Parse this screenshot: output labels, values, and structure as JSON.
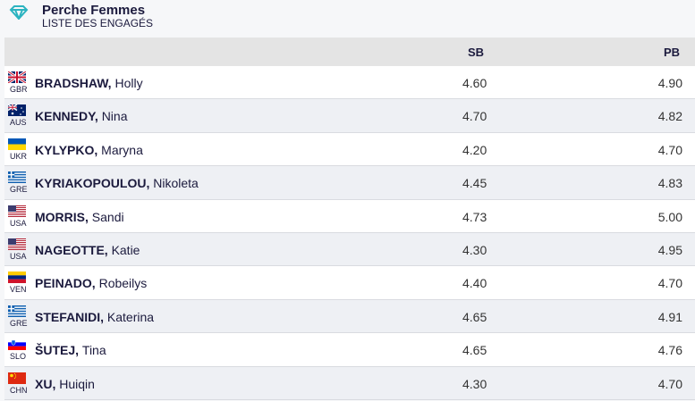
{
  "header": {
    "title": "Perche Femmes",
    "subtitle": "LISTE DES ENGAGÉS",
    "icon": "diamond-icon"
  },
  "columns": {
    "sb": "SB",
    "pb": "PB"
  },
  "athletes": [
    {
      "last": "BRADSHAW,",
      "first": "Holly",
      "country": "GBR",
      "sb": "4.60",
      "pb": "4.90"
    },
    {
      "last": "KENNEDY,",
      "first": "Nina",
      "country": "AUS",
      "sb": "4.70",
      "pb": "4.82"
    },
    {
      "last": "KYLYPKO,",
      "first": "Maryna",
      "country": "UKR",
      "sb": "4.20",
      "pb": "4.70"
    },
    {
      "last": "KYRIAKOPOULOU,",
      "first": "Nikoleta",
      "country": "GRE",
      "sb": "4.45",
      "pb": "4.83"
    },
    {
      "last": "MORRIS,",
      "first": "Sandi",
      "country": "USA",
      "sb": "4.73",
      "pb": "5.00"
    },
    {
      "last": "NAGEOTTE,",
      "first": "Katie",
      "country": "USA",
      "sb": "4.30",
      "pb": "4.95"
    },
    {
      "last": "PEINADO,",
      "first": "Robeilys",
      "country": "VEN",
      "sb": "4.40",
      "pb": "4.70"
    },
    {
      "last": "STEFANIDI,",
      "first": "Katerina",
      "country": "GRE",
      "sb": "4.65",
      "pb": "4.91"
    },
    {
      "last": "ŠUTEJ,",
      "first": "Tina",
      "country": "SLO",
      "sb": "4.65",
      "pb": "4.76"
    },
    {
      "last": "XU,",
      "first": "Huiqin",
      "country": "CHN",
      "sb": "4.30",
      "pb": "4.70"
    }
  ],
  "colors": {
    "text": "#1b1a3d",
    "accent": "#2bb3c0"
  }
}
